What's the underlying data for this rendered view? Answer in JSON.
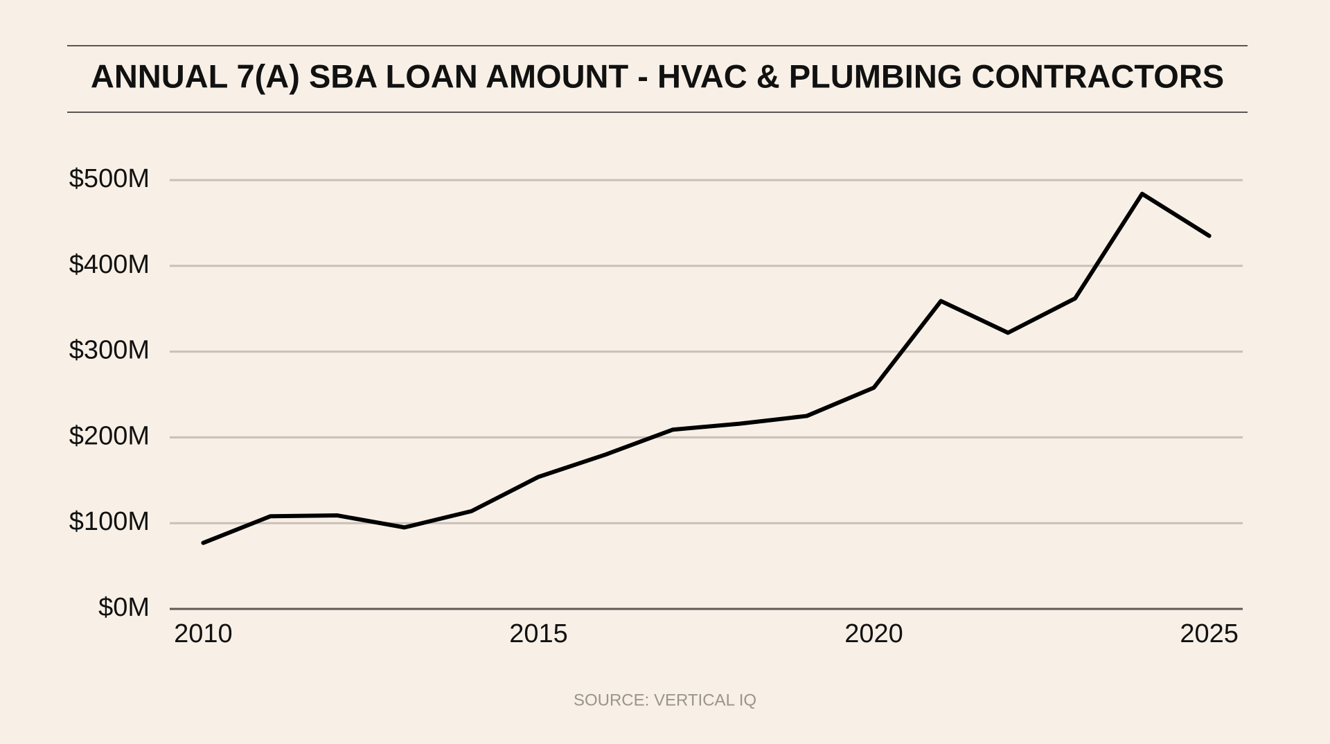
{
  "chart_data": {
    "type": "line",
    "title": "ANNUAL 7(A) SBA LOAN AMOUNT - HVAC & PLUMBING CONTRACTORS",
    "source": "SOURCE: VERTICAL IQ",
    "x": [
      2010,
      2011,
      2012,
      2013,
      2014,
      2015,
      2016,
      2017,
      2018,
      2019,
      2020,
      2021,
      2022,
      2023,
      2024,
      2025
    ],
    "series": [
      {
        "name": "7(A) SBA loan amount",
        "color": "#000000",
        "values": [
          77,
          108,
          109,
          95,
          114,
          154,
          180,
          209,
          216,
          225,
          258,
          359,
          322,
          362,
          484,
          435
        ]
      }
    ],
    "xlim": [
      2009.5,
      2025.5
    ],
    "xticks": [
      2010,
      2015,
      2020,
      2025
    ],
    "ylim": [
      0,
      500
    ],
    "yticks": [
      {
        "value": 0,
        "label": "$0M"
      },
      {
        "value": 100,
        "label": "$100M"
      },
      {
        "value": 200,
        "label": "$200M"
      },
      {
        "value": 300,
        "label": "$300M"
      },
      {
        "value": 400,
        "label": "$400M"
      },
      {
        "value": 500,
        "label": "$500M"
      }
    ],
    "grid": true
  }
}
